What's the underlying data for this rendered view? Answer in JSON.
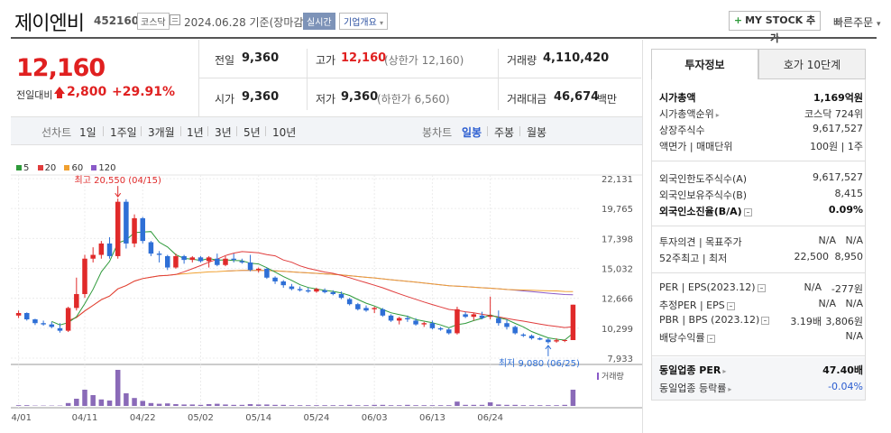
{
  "stock": {
    "name": "제이엔비",
    "code": "452160",
    "market": "코스닥",
    "date_text": "2024.06.28 기준(장마감)",
    "realtime": "실시간",
    "overview": "기업개요",
    "overview_caret": "▾",
    "mystock_plus": "+",
    "mystock": "MY STOCK 추가",
    "quick_order": "빠른주문",
    "quick_caret": "▾"
  },
  "price": {
    "current": "12,160",
    "compare_label": "전일대비",
    "change": "2,800",
    "change_pct": "+29.91%",
    "prev_label": "전일",
    "prev": "9,360",
    "open_label": "시가",
    "open": "9,360",
    "high_label": "고가",
    "high": "12,160",
    "high_sub": "(상한가 12,160)",
    "low_label": "저가",
    "low": "9,360",
    "low_sub": "(하한가 6,560)",
    "volume_label": "거래량",
    "volume": "4,110,420",
    "amount_label": "거래대금",
    "amount": "46,674",
    "amount_unit": "백만"
  },
  "period_bar": {
    "line_label": "선차트",
    "line_periods": [
      "1일",
      "1주일",
      "3개월",
      "1년",
      "3년",
      "5년",
      "10년"
    ],
    "candle_label": "봉차트",
    "candle_periods": [
      "일봉",
      "주봉",
      "월봉"
    ],
    "active_candle": "일봉"
  },
  "chart_data": {
    "type": "candlestick",
    "legend": [
      {
        "name": "5",
        "color": "#2e9a3a"
      },
      {
        "name": "20",
        "color": "#e03c3c"
      },
      {
        "name": "60",
        "color": "#f0a030"
      },
      {
        "name": "120",
        "color": "#8a5ac8"
      }
    ],
    "y_ticks": [
      22131,
      19765,
      17398,
      15032,
      12666,
      10299,
      7933
    ],
    "y_tick_labels": [
      "22,131",
      "19,765",
      "17,398",
      "15,032",
      "12,666",
      "10,299",
      "7,933"
    ],
    "ylim": [
      7933,
      22131
    ],
    "x_tick_labels": [
      "04/01",
      "04/11",
      "04/22",
      "05/02",
      "05/14",
      "05/24",
      "06/03",
      "06/13",
      "06/24"
    ],
    "x_tick_index": [
      0,
      8,
      15,
      22,
      29,
      36,
      43,
      50,
      57
    ],
    "high_annotation": "최고 20,550 (04/15)",
    "low_annotation": "최저 9,080 (06/25)",
    "volume_label": "거래량",
    "candles": [
      [
        11300,
        11700,
        11100,
        11500
      ],
      [
        11500,
        11550,
        10900,
        11000
      ],
      [
        11000,
        11050,
        10550,
        10700
      ],
      [
        10700,
        10900,
        10500,
        10600
      ],
      [
        10600,
        10800,
        10300,
        10400
      ],
      [
        10300,
        10700,
        9950,
        10100
      ],
      [
        10100,
        12000,
        10000,
        11900
      ],
      [
        11900,
        14300,
        11700,
        13000
      ],
      [
        13000,
        16100,
        12700,
        15800
      ],
      [
        15800,
        16700,
        15500,
        16100
      ],
      [
        16100,
        17200,
        15800,
        17000
      ],
      [
        17000,
        17500,
        15800,
        16000
      ],
      [
        16000,
        20550,
        15800,
        20300
      ],
      [
        20300,
        20500,
        16600,
        17000
      ],
      [
        17000,
        19300,
        16700,
        19000
      ],
      [
        19000,
        19100,
        17000,
        17200
      ],
      [
        17100,
        17200,
        16000,
        16200
      ],
      [
        16200,
        16400,
        15500,
        16100
      ],
      [
        16000,
        16100,
        14900,
        15100
      ],
      [
        15100,
        16200,
        15000,
        16000
      ],
      [
        16000,
        16100,
        15400,
        15700
      ],
      [
        15700,
        16000,
        15500,
        15900
      ],
      [
        15900,
        16000,
        15500,
        15600
      ],
      [
        15600,
        16000,
        15100,
        15900
      ],
      [
        15800,
        16200,
        15200,
        15300
      ],
      [
        15300,
        16000,
        15200,
        15800
      ],
      [
        15800,
        16200,
        15500,
        15700
      ],
      [
        15600,
        15800,
        15400,
        15500
      ],
      [
        15500,
        16100,
        14800,
        14900
      ],
      [
        14900,
        15100,
        14700,
        15000
      ],
      [
        15000,
        15100,
        14200,
        14300
      ],
      [
        14300,
        14400,
        13800,
        14000
      ],
      [
        14000,
        14100,
        13500,
        13700
      ],
      [
        13600,
        13800,
        13300,
        13400
      ],
      [
        13400,
        13600,
        13200,
        13300
      ],
      [
        13300,
        13500,
        13100,
        13200
      ],
      [
        13200,
        13500,
        13100,
        13400
      ],
      [
        13300,
        13450,
        13050,
        13150
      ],
      [
        13150,
        13300,
        12900,
        13000
      ],
      [
        13000,
        13200,
        12600,
        12700
      ],
      [
        12600,
        12700,
        12100,
        12200
      ],
      [
        12200,
        12300,
        11700,
        11800
      ],
      [
        11900,
        12100,
        11600,
        11700
      ],
      [
        11800,
        12000,
        11500,
        11900
      ],
      [
        11800,
        11900,
        11200,
        11300
      ],
      [
        11300,
        11400,
        10800,
        10900
      ],
      [
        10900,
        11200,
        10600,
        11100
      ],
      [
        11100,
        11300,
        10800,
        11000
      ],
      [
        10900,
        11100,
        10500,
        10600
      ],
      [
        10600,
        10800,
        10400,
        10700
      ],
      [
        10700,
        10900,
        10200,
        10300
      ],
      [
        10300,
        10400,
        10100,
        10200
      ],
      [
        10200,
        10300,
        9800,
        9900
      ],
      [
        9900,
        12000,
        9800,
        11800
      ],
      [
        11400,
        11600,
        11100,
        11200
      ],
      [
        11200,
        11500,
        10900,
        11400
      ],
      [
        11300,
        11600,
        11000,
        11100
      ],
      [
        11200,
        12800,
        11000,
        11300
      ],
      [
        11100,
        11700,
        10500,
        10700
      ],
      [
        10700,
        11000,
        10200,
        10400
      ],
      [
        10400,
        10500,
        9800,
        9900
      ],
      [
        9800,
        9900,
        9600,
        9700
      ],
      [
        9700,
        9800,
        9400,
        9500
      ],
      [
        9500,
        9600,
        9350,
        9400
      ],
      [
        9400,
        9500,
        9080,
        9200
      ],
      [
        9250,
        9500,
        9150,
        9350
      ],
      [
        9360,
        9400,
        9200,
        9360
      ],
      [
        9360,
        12160,
        9360,
        12160
      ]
    ],
    "volumes": [
      2,
      2,
      1,
      1,
      1,
      1,
      8,
      20,
      45,
      30,
      18,
      15,
      100,
      35,
      22,
      14,
      8,
      6,
      7,
      5,
      4,
      4,
      3,
      5,
      6,
      4,
      3,
      3,
      5,
      4,
      4,
      3,
      3,
      2,
      2,
      2,
      2,
      2,
      2,
      2,
      3,
      2,
      2,
      3,
      3,
      2,
      2,
      3,
      2,
      2,
      2,
      2,
      2,
      12,
      3,
      3,
      3,
      10,
      4,
      3,
      3,
      2,
      2,
      2,
      2,
      2,
      3,
      45
    ]
  },
  "panel": {
    "tab_invest": "투자정보",
    "tab_hoga": "호가 10단계",
    "market_cap_label": "시가총액",
    "market_cap": "1,169억원",
    "cap_rank_label": "시가총액순위",
    "cap_rank": "코스닥 724위",
    "shares_label": "상장주식수",
    "shares": "9,617,527",
    "face_label": "액면가 | 매매단위",
    "face": "100원 | 1주",
    "foreign_limit_label": "외국인한도주식수(A)",
    "foreign_limit": "9,617,527",
    "foreign_hold_label": "외국인보유주식수(B)",
    "foreign_hold": "8,415",
    "foreign_ratio_label": "외국인소진율(B/A)",
    "foreign_ratio": "0.09%",
    "opinion_label": "투자의견 | 목표주가",
    "opinion": "N/A",
    "target": "N/A",
    "week52_label": "52주최고 | 최저",
    "week52_high": "22,500",
    "week52_low": "8,950",
    "per_label": "PER | EPS(2023.12)",
    "per": "N/A",
    "eps": "-277원",
    "est_per_label": "추정PER | EPS",
    "est_per": "N/A",
    "est_eps": "N/A",
    "pbr_label": "PBR | BPS (2023.12)",
    "pbr": "3.19배",
    "bps": "3,806원",
    "div_label": "배당수익률",
    "div": "N/A",
    "sector_per_label": "동일업종 PER",
    "sector_per": "47.40배",
    "sector_rate_label": "동일업종 등락률",
    "sector_rate": "-0.04%"
  }
}
